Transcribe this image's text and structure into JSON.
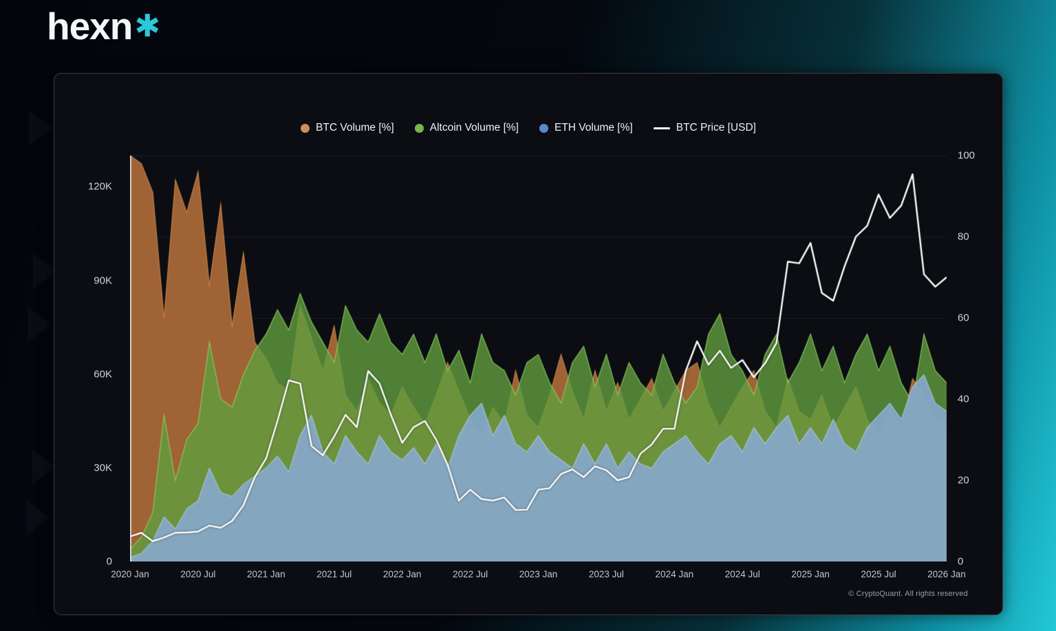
{
  "brand": {
    "name": "hexn",
    "mark": "✱"
  },
  "colors": {
    "accent_teal": "#2bc8d9",
    "card_background": "#0b0d12",
    "btc_volume": "#cc9255",
    "altcoin_volume": "#77b64d",
    "eth_volume": "#5d87c9",
    "btc_price": "#ffffff"
  },
  "legend": [
    {
      "label": "BTC Volume [%]",
      "swatch": "dot",
      "color": "#cc9255"
    },
    {
      "label": "Altcoin Volume [%]",
      "swatch": "dot",
      "color": "#77b64d"
    },
    {
      "label": "ETH Volume [%]",
      "swatch": "dot",
      "color": "#5d87c9"
    },
    {
      "label": "BTC Price [USD]",
      "swatch": "line",
      "color": "#ffffff"
    }
  ],
  "watermark": "© CryptoQuant. All rights reserved",
  "chart_data": {
    "type": "area",
    "title": "",
    "x_start": "2020 Jan",
    "x_end": "2026 Jan",
    "x_tick_labels": [
      "2020 Jan",
      "2020 Jul",
      "2021 Jan",
      "2021 Jul",
      "2022 Jan",
      "2022 Jul",
      "2023 Jan",
      "2023 Jul",
      "2024 Jan",
      "2024 Jul",
      "2025 Jan",
      "2025 Jul",
      "2026 Jan"
    ],
    "x_tick_step_months": 6,
    "grid": "horizontal-faint",
    "legend_position": "top-center",
    "left_axis": {
      "ticks": [
        0,
        30000,
        60000,
        90000,
        120000
      ],
      "tick_labels": [
        "0",
        "30K",
        "60K",
        "90K",
        "120K"
      ],
      "max": 130000
    },
    "right_axis": {
      "ticks": [
        0,
        20,
        40,
        60,
        80,
        100
      ],
      "tick_labels": [
        "0",
        "20",
        "40",
        "60",
        "80",
        "100"
      ],
      "max": 100
    },
    "series": [
      {
        "name": "BTC Volume [%]",
        "kind": "area",
        "axis": "right",
        "fill": "rgba(169,104,56,0.95)",
        "stroke": "rgba(207,138,78,0.9)",
        "values": [
          100,
          98,
          91,
          60,
          94,
          86,
          96,
          68,
          88,
          58,
          76,
          54,
          50,
          44,
          42,
          63,
          55,
          47,
          58,
          41,
          37,
          45,
          39,
          36,
          43,
          38,
          34,
          41,
          49,
          42,
          35,
          31,
          38,
          34,
          47,
          36,
          33,
          41,
          51,
          42,
          35,
          47,
          37,
          44,
          35,
          40,
          45,
          37,
          42,
          47,
          49,
          39,
          33,
          38,
          43,
          47,
          37,
          33,
          45,
          37,
          35,
          41,
          33,
          38,
          43,
          35,
          31,
          38,
          33,
          45,
          41,
          35,
          33
        ]
      },
      {
        "name": "Altcoin Volume [%]",
        "kind": "area",
        "axis": "right",
        "fill": "rgba(96,158,62,0.8)",
        "stroke": "rgba(143,206,98,0.9)",
        "values": [
          3,
          6,
          12,
          36,
          20,
          30,
          34,
          54,
          40,
          38,
          46,
          52,
          56,
          62,
          57,
          66,
          59,
          54,
          49,
          63,
          57,
          54,
          61,
          54,
          51,
          56,
          49,
          56,
          47,
          52,
          44,
          56,
          49,
          47,
          41,
          49,
          51,
          44,
          39,
          49,
          53,
          43,
          51,
          41,
          49,
          44,
          41,
          51,
          44,
          39,
          43,
          56,
          61,
          51,
          47,
          41,
          51,
          56,
          44,
          49,
          56,
          47,
          53,
          44,
          51,
          56,
          47,
          53,
          44,
          39,
          56,
          47,
          44
        ]
      },
      {
        "name": "ETH Volume [%]",
        "kind": "area",
        "axis": "right",
        "fill": "rgba(134,168,204,0.9)",
        "stroke": "rgba(169,198,226,0.9)",
        "values": [
          1,
          2,
          5,
          11,
          8,
          13,
          15,
          23,
          17,
          16,
          19,
          21,
          23,
          26,
          22,
          31,
          36,
          27,
          24,
          31,
          27,
          24,
          31,
          27,
          25,
          28,
          24,
          29,
          23,
          31,
          36,
          39,
          31,
          36,
          29,
          27,
          31,
          27,
          25,
          23,
          29,
          24,
          29,
          23,
          27,
          24,
          23,
          27,
          29,
          31,
          27,
          24,
          29,
          31,
          27,
          33,
          29,
          33,
          36,
          29,
          33,
          29,
          35,
          29,
          27,
          33,
          36,
          39,
          35,
          43,
          46,
          39,
          37
        ]
      },
      {
        "name": "BTC Price [USD]",
        "kind": "line",
        "axis": "left",
        "color": "#ffffff",
        "values": [
          8000,
          9200,
          6500,
          7700,
          9200,
          9300,
          9600,
          11500,
          10800,
          13000,
          18000,
          27000,
          33000,
          45000,
          58000,
          57000,
          37000,
          34000,
          40000,
          47000,
          43000,
          61000,
          57000,
          47000,
          38000,
          43000,
          45000,
          39000,
          31000,
          19500,
          23000,
          20000,
          19500,
          20500,
          16500,
          16600,
          23000,
          23500,
          28000,
          29500,
          27000,
          30500,
          29200,
          26000,
          27000,
          34500,
          37500,
          42500,
          42500,
          61000,
          70500,
          63000,
          67500,
          62000,
          64500,
          59000,
          63500,
          70000,
          96000,
          95500,
          102000,
          86000,
          83500,
          94500,
          104000,
          107500,
          117500,
          110000,
          114000,
          124000,
          92000,
          88000,
          91000
        ]
      }
    ]
  }
}
